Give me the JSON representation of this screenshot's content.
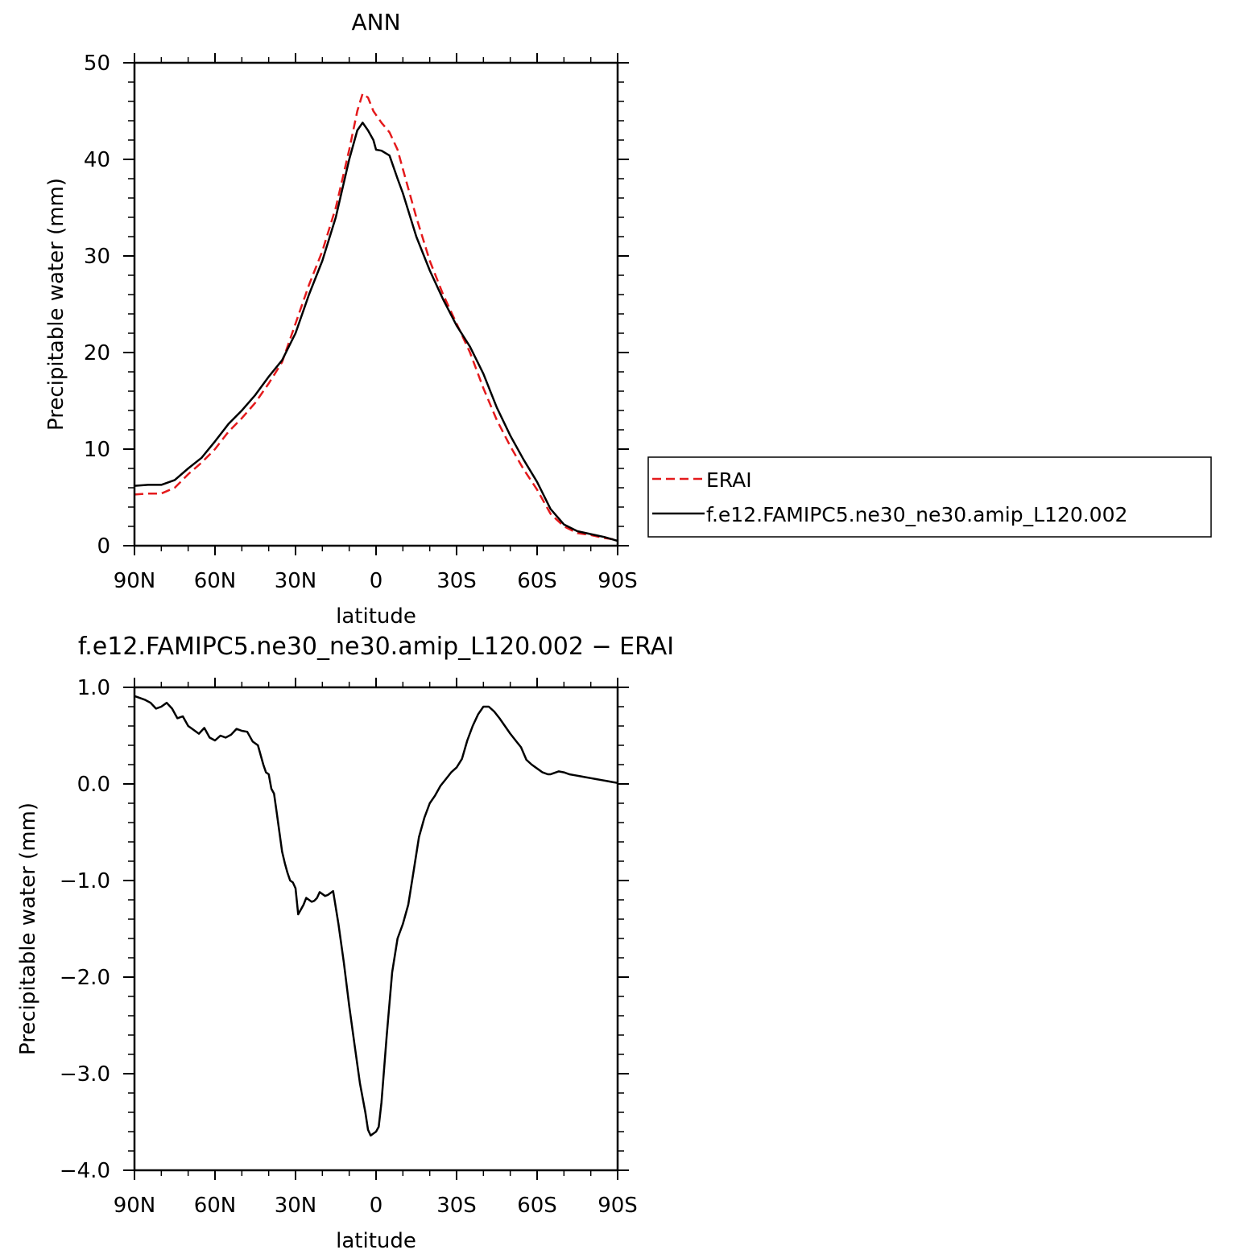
{
  "chart_data": [
    {
      "type": "line",
      "title": "ANN",
      "xlabel": "latitude",
      "ylabel": "Precipitable water (mm)",
      "xlim": [
        90,
        -90
      ],
      "ylim": [
        0,
        50
      ],
      "xtick_values": [
        90,
        60,
        30,
        0,
        -30,
        -60,
        -90
      ],
      "xtick_labels": [
        "90N",
        "60N",
        "30N",
        "0",
        "30S",
        "60S",
        "90S"
      ],
      "ytick_values": [
        0,
        10,
        20,
        30,
        40,
        50
      ],
      "ytick_labels": [
        "0",
        "10",
        "20",
        "30",
        "40",
        "50"
      ],
      "legend_position": "right",
      "series": [
        {
          "name": "ERAI",
          "color": "#e41a1c",
          "style": "dashed",
          "x": [
            90,
            85,
            80,
            75,
            70,
            65,
            60,
            55,
            50,
            45,
            40,
            35,
            30,
            25,
            20,
            15,
            10,
            7,
            5,
            3,
            1,
            0,
            -2,
            -5,
            -8,
            -10,
            -15,
            -20,
            -25,
            -30,
            -35,
            -40,
            -45,
            -50,
            -55,
            -60,
            -65,
            -70,
            -75,
            -80,
            -85,
            -90
          ],
          "y": [
            5.3,
            5.4,
            5.4,
            6.0,
            7.4,
            8.6,
            10.0,
            11.8,
            13.2,
            14.8,
            16.8,
            19.0,
            23.0,
            27.0,
            30.5,
            35.0,
            41.0,
            45.0,
            46.8,
            46.4,
            45.0,
            44.6,
            43.8,
            42.8,
            41.0,
            39.0,
            34.0,
            29.5,
            26.0,
            23.0,
            20.0,
            16.3,
            13.0,
            10.3,
            7.9,
            5.8,
            3.3,
            2.0,
            1.3,
            1.1,
            0.8,
            0.6
          ]
        },
        {
          "name": "f.e12.FAMIPC5.ne30_ne30.amip_L120.002",
          "color": "#000000",
          "style": "solid",
          "x": [
            90,
            85,
            80,
            75,
            70,
            65,
            60,
            55,
            50,
            45,
            40,
            35,
            30,
            25,
            20,
            15,
            10,
            7,
            5,
            3,
            1,
            0,
            -2,
            -5,
            -8,
            -10,
            -15,
            -20,
            -25,
            -30,
            -35,
            -40,
            -45,
            -50,
            -55,
            -60,
            -65,
            -70,
            -75,
            -80,
            -85,
            -90
          ],
          "y": [
            6.2,
            6.3,
            6.3,
            6.8,
            8.0,
            9.1,
            10.8,
            12.6,
            14.0,
            15.6,
            17.5,
            19.2,
            22.0,
            26.0,
            29.5,
            34.0,
            40.0,
            43.0,
            43.8,
            43.0,
            42.0,
            41.0,
            40.9,
            40.4,
            38.0,
            36.5,
            32.0,
            28.5,
            25.5,
            22.8,
            20.6,
            17.8,
            14.3,
            11.4,
            8.9,
            6.6,
            3.8,
            2.2,
            1.5,
            1.2,
            0.9,
            0.5
          ]
        }
      ]
    },
    {
      "type": "line",
      "title": "f.e12.FAMIPC5.ne30_ne30.amip_L120.002 − ERAI",
      "xlabel": "latitude",
      "ylabel": "Precipitable water (mm)",
      "xlim": [
        90,
        -90
      ],
      "ylim": [
        -4.0,
        1.0
      ],
      "xtick_values": [
        90,
        60,
        30,
        0,
        -30,
        -60,
        -90
      ],
      "xtick_labels": [
        "90N",
        "60N",
        "30N",
        "0",
        "30S",
        "60S",
        "90S"
      ],
      "ytick_values": [
        1.0,
        0.0,
        -1.0,
        -2.0,
        -3.0,
        -4.0
      ],
      "ytick_labels": [
        "1.0",
        "0.0",
        "−1.0",
        "−2.0",
        "−3.0",
        "−4.0"
      ],
      "series": [
        {
          "color": "#000000",
          "style": "solid",
          "x": [
            90,
            88,
            86,
            84,
            82,
            80,
            78,
            76,
            74,
            72,
            70,
            68,
            66,
            64,
            62,
            60,
            58,
            56,
            54,
            52,
            50,
            48,
            46,
            44,
            42,
            41,
            40,
            39,
            38,
            37,
            36,
            35,
            34,
            33,
            32,
            31,
            30,
            29,
            28,
            27,
            26,
            25,
            24,
            23,
            22,
            21,
            20,
            19,
            18,
            17,
            16,
            15,
            14,
            12,
            10,
            8,
            6,
            4,
            3,
            2,
            1,
            0,
            -1,
            -2,
            -4,
            -6,
            -8,
            -10,
            -12,
            -14,
            -16,
            -18,
            -20,
            -22,
            -24,
            -26,
            -28,
            -30,
            -32,
            -34,
            -36,
            -38,
            -40,
            -42,
            -44,
            -46,
            -48,
            -50,
            -52,
            -54,
            -56,
            -58,
            -60,
            -62,
            -64,
            -65,
            -66,
            -68,
            -70,
            -72,
            -74,
            -76,
            -78,
            -80,
            -82,
            -84,
            -86,
            -88,
            -90
          ],
          "y": [
            0.91,
            0.89,
            0.87,
            0.84,
            0.78,
            0.8,
            0.84,
            0.78,
            0.68,
            0.7,
            0.6,
            0.56,
            0.52,
            0.58,
            0.48,
            0.45,
            0.5,
            0.48,
            0.51,
            0.57,
            0.55,
            0.54,
            0.44,
            0.4,
            0.2,
            0.12,
            0.1,
            -0.05,
            -0.1,
            -0.3,
            -0.5,
            -0.7,
            -0.82,
            -0.92,
            -1.0,
            -1.02,
            -1.08,
            -1.35,
            -1.3,
            -1.25,
            -1.18,
            -1.2,
            -1.22,
            -1.21,
            -1.18,
            -1.12,
            -1.14,
            -1.16,
            -1.15,
            -1.13,
            -1.11,
            -1.28,
            -1.45,
            -1.85,
            -2.3,
            -2.7,
            -3.1,
            -3.4,
            -3.58,
            -3.64,
            -3.62,
            -3.6,
            -3.55,
            -3.3,
            -2.6,
            -1.95,
            -1.6,
            -1.45,
            -1.25,
            -0.9,
            -0.55,
            -0.35,
            -0.2,
            -0.12,
            -0.02,
            0.05,
            0.12,
            0.17,
            0.26,
            0.45,
            0.6,
            0.72,
            0.8,
            0.8,
            0.75,
            0.68,
            0.6,
            0.52,
            0.45,
            0.38,
            0.25,
            0.2,
            0.16,
            0.12,
            0.1,
            0.1,
            0.11,
            0.13,
            0.12,
            0.1,
            0.09,
            0.08,
            0.07,
            0.06,
            0.05,
            0.04,
            0.03,
            0.02,
            0.01
          ]
        }
      ]
    }
  ]
}
